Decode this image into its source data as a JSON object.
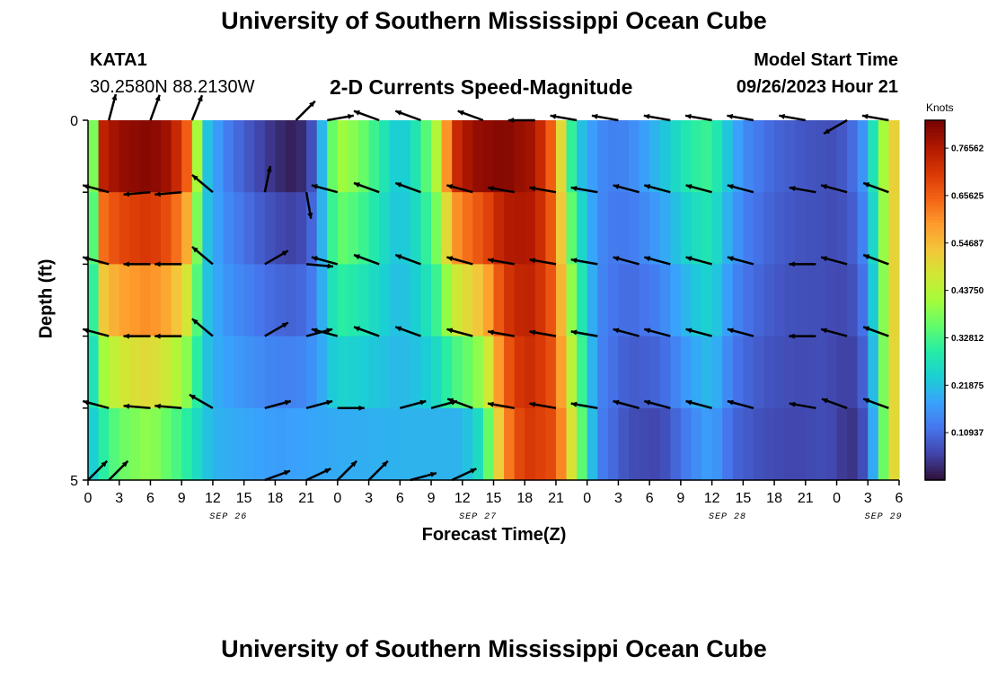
{
  "header": {
    "title": "University of Southern Mississippi Ocean Cube",
    "station": "KATA1",
    "coords": "30.2580N  88.2130W",
    "subtitle": "2-D Currents Speed-Magnitude",
    "model_start_label": "Model Start Time",
    "model_start_value": "09/26/2023 Hour 21"
  },
  "footer": {
    "title": "University of Southern Mississippi Ocean Cube"
  },
  "colorbar": {
    "unit": "Knots",
    "ticks": [
      "0.10937",
      "0.21875",
      "0.32812",
      "0.43750",
      "0.54687",
      "0.65625",
      "0.76562"
    ],
    "colors": [
      "#30123b",
      "#4145ab",
      "#4675ed",
      "#39a2fc",
      "#1bcfd4",
      "#24eca6",
      "#61fc6c",
      "#a4fc3b",
      "#d1e834",
      "#f3c63a",
      "#fe9b2d",
      "#f36315",
      "#d93806",
      "#b11901",
      "#7a0402"
    ]
  },
  "chart_data": {
    "type": "heatmap",
    "title": "2-D Currents Speed-Magnitude",
    "xlabel": "Forecast Time(Z)",
    "ylabel": "Depth (ft)",
    "x_tick_labels": [
      "0",
      "3",
      "6",
      "9",
      "12",
      "15",
      "18",
      "21",
      "0",
      "3",
      "6",
      "9",
      "12",
      "15",
      "18",
      "21",
      "0",
      "3",
      "6",
      "9",
      "12",
      "15",
      "18",
      "21",
      "0",
      "3",
      "6"
    ],
    "date_labels": [
      {
        "label": "SEP 26",
        "after_tick": 4
      },
      {
        "label": "SEP 27",
        "after_tick": 12
      },
      {
        "label": "SEP 28",
        "after_tick": 20
      },
      {
        "label": "SEP 29",
        "after_tick": 25
      }
    ],
    "y_tick_labels": [
      "0",
      "",
      "",
      "",
      "",
      "5"
    ],
    "ylim": [
      0,
      5
    ],
    "value_unit": "Knots",
    "vmin": 0.0,
    "vmax": 0.83,
    "depth_rows": [
      "0-1 ft",
      "1-2 ft",
      "2-3 ft",
      "3-4 ft",
      "4-5 ft"
    ],
    "speed_profile_surface": [
      [
        0,
        0.25
      ],
      [
        0.5,
        0.38
      ],
      [
        1,
        0.74
      ],
      [
        3,
        0.8
      ],
      [
        6,
        0.82
      ],
      [
        8,
        0.78
      ],
      [
        9.5,
        0.66
      ],
      [
        10.5,
        0.42
      ],
      [
        11.5,
        0.22
      ],
      [
        13,
        0.14
      ],
      [
        15,
        0.09
      ],
      [
        17,
        0.05
      ],
      [
        19,
        0.02
      ],
      [
        20,
        0.015
      ],
      [
        21,
        0.04
      ],
      [
        22,
        0.11
      ],
      [
        23,
        0.3
      ],
      [
        24,
        0.42
      ],
      [
        26,
        0.38
      ],
      [
        28,
        0.3
      ],
      [
        30,
        0.22
      ],
      [
        32,
        0.3
      ],
      [
        34,
        0.48
      ],
      [
        35,
        0.72
      ],
      [
        37,
        0.8
      ],
      [
        40,
        0.82
      ],
      [
        43,
        0.78
      ],
      [
        45,
        0.62
      ],
      [
        46,
        0.38
      ],
      [
        47,
        0.24
      ],
      [
        49,
        0.15
      ],
      [
        51,
        0.13
      ],
      [
        53,
        0.16
      ],
      [
        56,
        0.24
      ],
      [
        58,
        0.3
      ],
      [
        60,
        0.32
      ],
      [
        61,
        0.25
      ],
      [
        63,
        0.15
      ],
      [
        66,
        0.1
      ],
      [
        69,
        0.08
      ],
      [
        72,
        0.07
      ],
      [
        74,
        0.12
      ],
      [
        75,
        0.2
      ],
      [
        76,
        0.35
      ],
      [
        77,
        0.48
      ],
      [
        78,
        0.55
      ]
    ],
    "speed_profile_bottom": [
      [
        0,
        0.2
      ],
      [
        1,
        0.28
      ],
      [
        3,
        0.36
      ],
      [
        6,
        0.4
      ],
      [
        9,
        0.32
      ],
      [
        12,
        0.2
      ],
      [
        18,
        0.17
      ],
      [
        24,
        0.19
      ],
      [
        30,
        0.2
      ],
      [
        36,
        0.2
      ],
      [
        38,
        0.28
      ],
      [
        40,
        0.6
      ],
      [
        42,
        0.72
      ],
      [
        45,
        0.68
      ],
      [
        47,
        0.42
      ],
      [
        49,
        0.14
      ],
      [
        52,
        0.07
      ],
      [
        55,
        0.06
      ],
      [
        58,
        0.14
      ],
      [
        60,
        0.18
      ],
      [
        62,
        0.1
      ],
      [
        65,
        0.07
      ],
      [
        68,
        0.06
      ],
      [
        71,
        0.07
      ],
      [
        73,
        0.04
      ],
      [
        74,
        0.04
      ],
      [
        75,
        0.1
      ],
      [
        76,
        0.28
      ],
      [
        77,
        0.45
      ],
      [
        78,
        0.55
      ]
    ],
    "vectors": [
      {
        "depth": 0,
        "pairs": [
          [
            2,
            75
          ],
          [
            6,
            70
          ],
          [
            10,
            68
          ],
          [
            20,
            45
          ],
          [
            23,
            10
          ],
          [
            28,
            160
          ],
          [
            32,
            160
          ],
          [
            38,
            160
          ],
          [
            43,
            180
          ],
          [
            47,
            170
          ],
          [
            51,
            170
          ],
          [
            56,
            170
          ],
          [
            60,
            170
          ],
          [
            64,
            170
          ],
          [
            69,
            170
          ],
          [
            73,
            210
          ],
          [
            77,
            170
          ]
        ]
      },
      {
        "depth": 1,
        "pairs": [
          [
            2,
            165
          ],
          [
            6,
            185
          ],
          [
            9,
            185
          ],
          [
            12,
            140
          ],
          [
            17,
            78
          ],
          [
            21,
            -80
          ],
          [
            24,
            165
          ],
          [
            28,
            160
          ],
          [
            32,
            160
          ],
          [
            37,
            165
          ],
          [
            41,
            170
          ],
          [
            45,
            170
          ],
          [
            49,
            170
          ],
          [
            53,
            165
          ],
          [
            56,
            165
          ],
          [
            60,
            165
          ],
          [
            64,
            165
          ],
          [
            70,
            170
          ],
          [
            73,
            165
          ],
          [
            77,
            160
          ]
        ]
      },
      {
        "depth": 2,
        "pairs": [
          [
            2,
            165
          ],
          [
            6,
            180
          ],
          [
            9,
            180
          ],
          [
            12,
            140
          ],
          [
            17,
            30
          ],
          [
            21,
            -5
          ],
          [
            24,
            165
          ],
          [
            28,
            160
          ],
          [
            32,
            160
          ],
          [
            37,
            165
          ],
          [
            41,
            170
          ],
          [
            45,
            170
          ],
          [
            49,
            170
          ],
          [
            53,
            165
          ],
          [
            56,
            165
          ],
          [
            60,
            165
          ],
          [
            64,
            165
          ],
          [
            70,
            180
          ],
          [
            73,
            165
          ],
          [
            77,
            160
          ]
        ]
      },
      {
        "depth": 3,
        "pairs": [
          [
            2,
            165
          ],
          [
            6,
            180
          ],
          [
            9,
            180
          ],
          [
            12,
            140
          ],
          [
            17,
            30
          ],
          [
            21,
            15
          ],
          [
            24,
            165
          ],
          [
            28,
            160
          ],
          [
            32,
            160
          ],
          [
            37,
            165
          ],
          [
            41,
            170
          ],
          [
            45,
            170
          ],
          [
            49,
            170
          ],
          [
            53,
            165
          ],
          [
            56,
            165
          ],
          [
            60,
            165
          ],
          [
            64,
            165
          ],
          [
            70,
            180
          ],
          [
            73,
            165
          ],
          [
            77,
            160
          ]
        ]
      },
      {
        "depth": 4,
        "pairs": [
          [
            2,
            165
          ],
          [
            6,
            175
          ],
          [
            9,
            175
          ],
          [
            12,
            150
          ],
          [
            17,
            15
          ],
          [
            21,
            15
          ],
          [
            24,
            0
          ],
          [
            30,
            15
          ],
          [
            33,
            15
          ],
          [
            37,
            160
          ],
          [
            41,
            170
          ],
          [
            45,
            170
          ],
          [
            49,
            170
          ],
          [
            53,
            165
          ],
          [
            56,
            165
          ],
          [
            60,
            165
          ],
          [
            64,
            165
          ],
          [
            70,
            170
          ],
          [
            73,
            160
          ],
          [
            77,
            160
          ]
        ]
      },
      {
        "depth": 5,
        "pairs": [
          [
            0,
            45
          ],
          [
            2,
            45
          ],
          [
            17,
            20
          ],
          [
            21,
            25
          ],
          [
            24,
            45
          ],
          [
            27,
            45
          ],
          [
            31,
            15
          ],
          [
            35,
            25
          ]
        ]
      }
    ]
  }
}
